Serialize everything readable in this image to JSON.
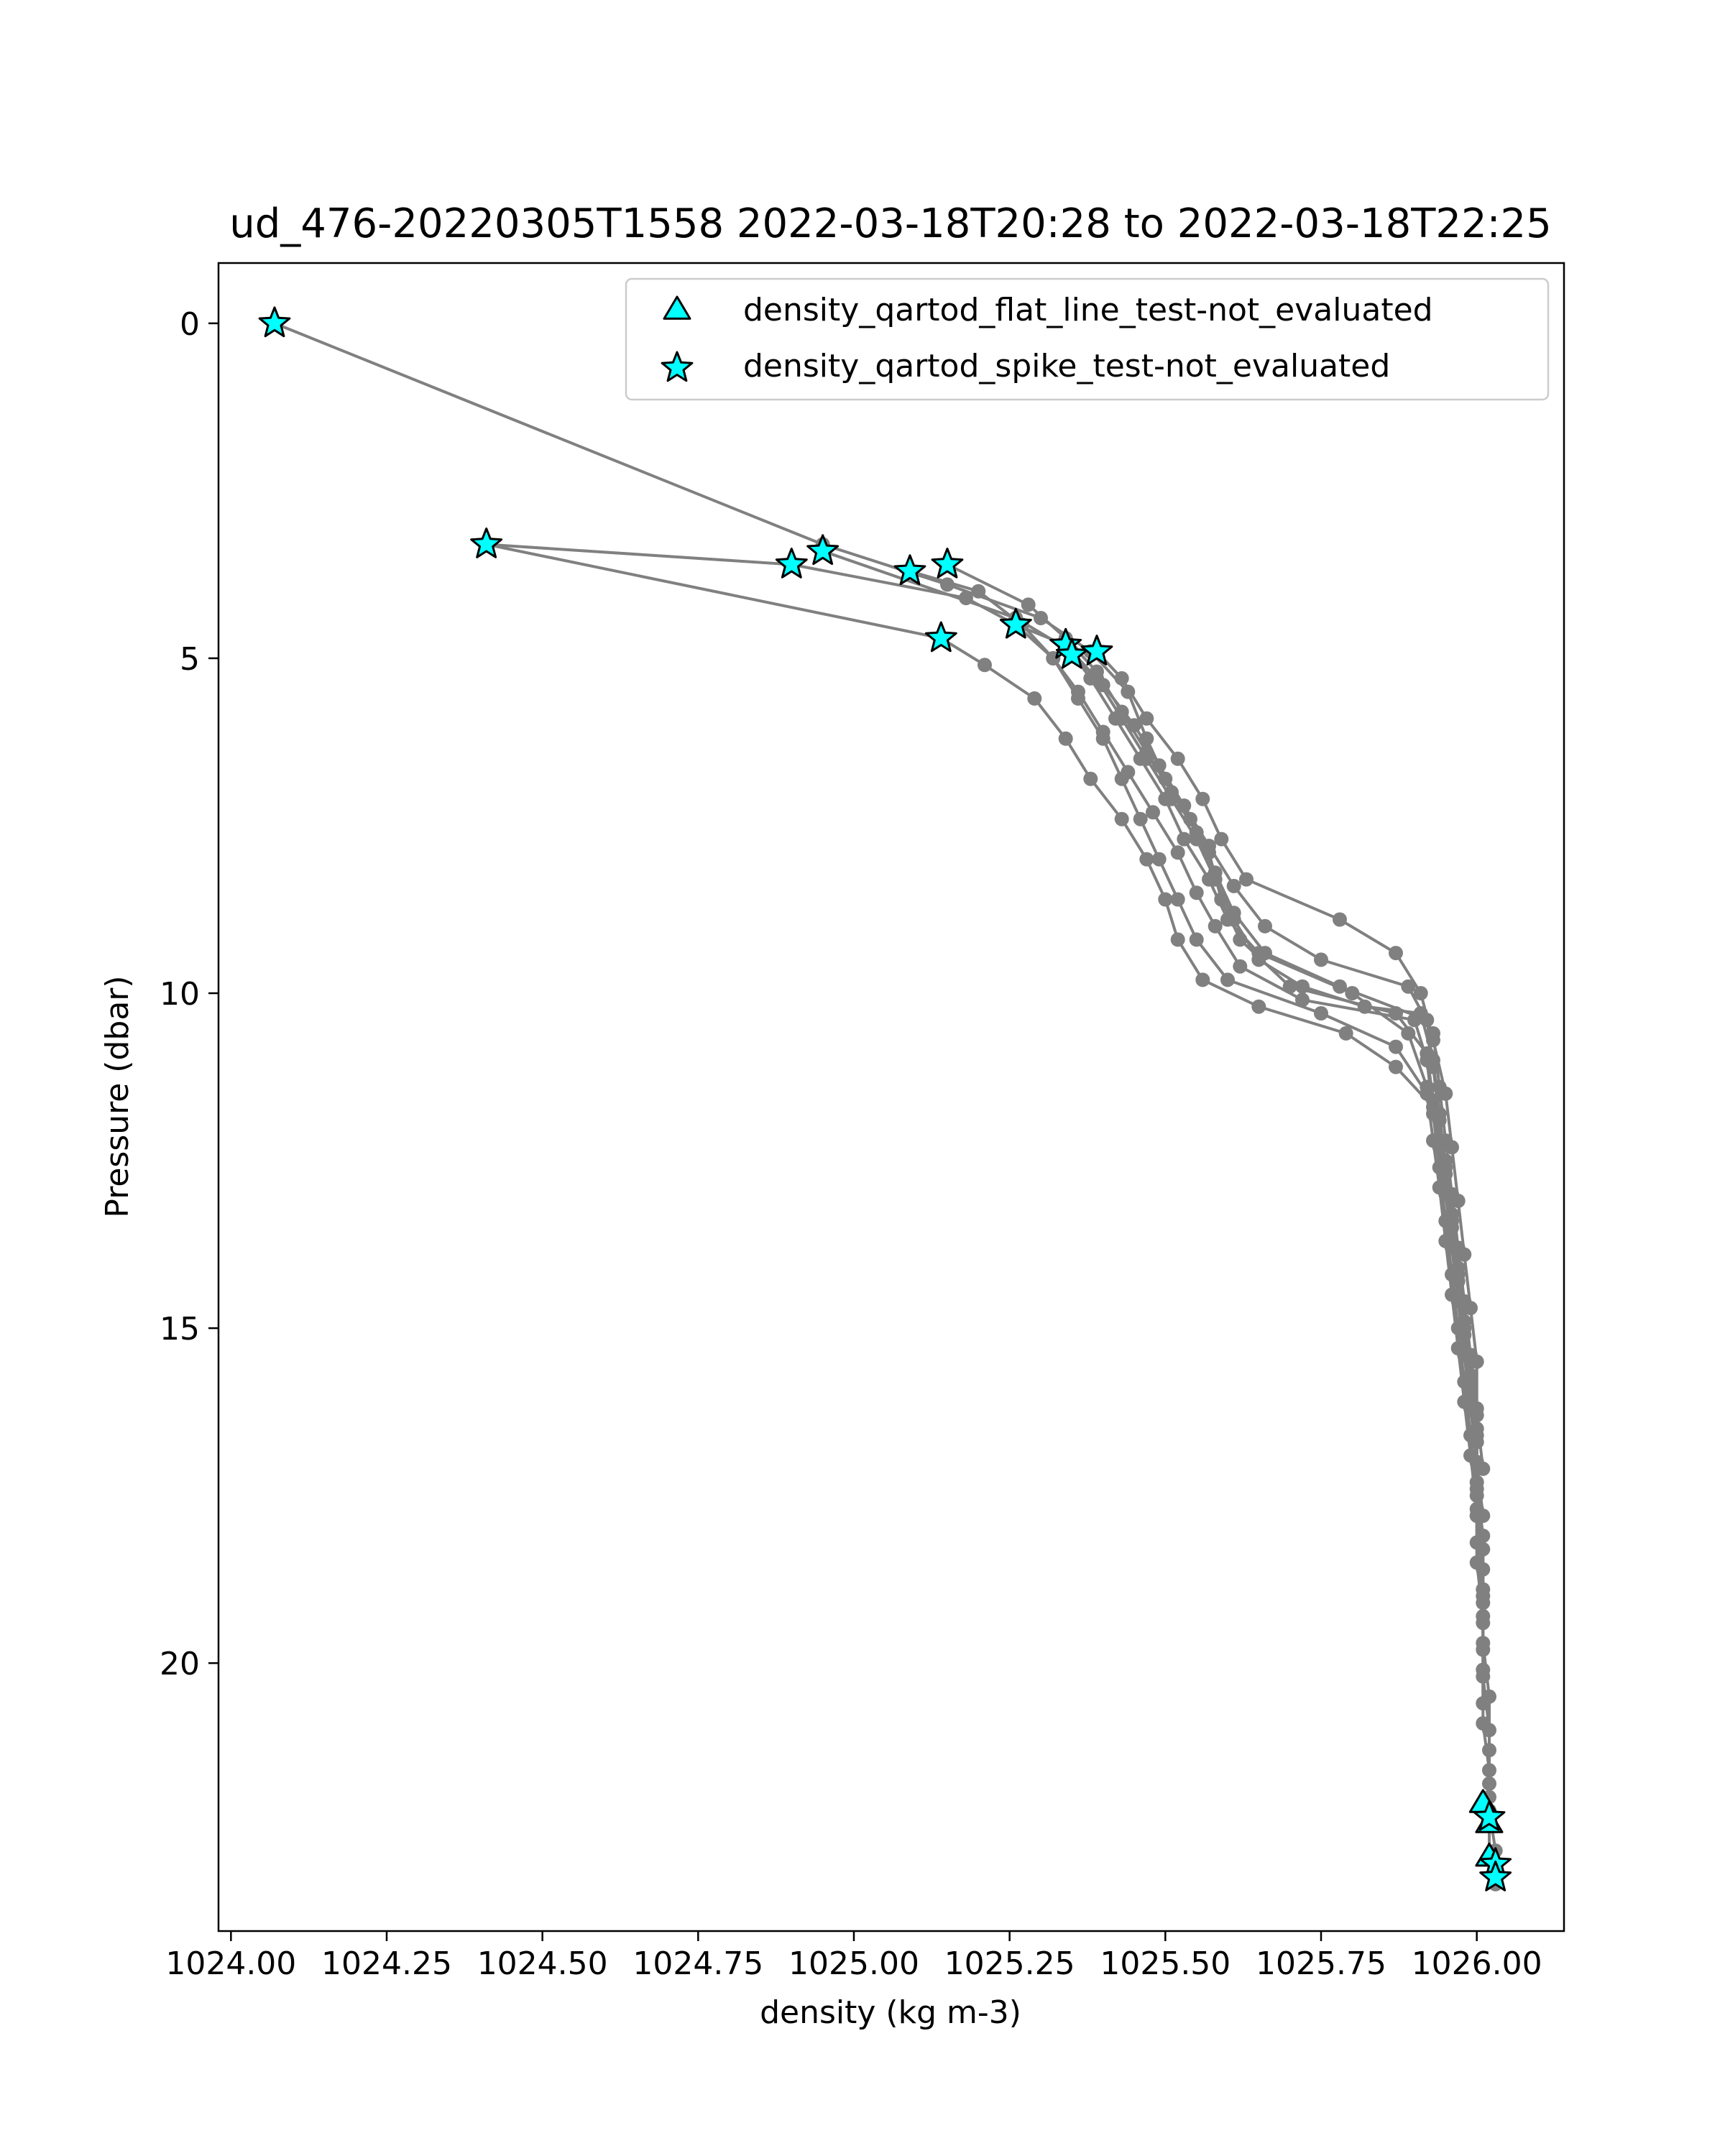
{
  "chart_data": {
    "type": "scatter",
    "title": "ud_476-20220305T1558 2022-03-18T20:28 to 2022-03-18T22:25",
    "xlabel": "density (kg m-3)",
    "ylabel": "Pressure (dbar)",
    "xlim": [
      1023.98,
      1026.14
    ],
    "ylim": [
      24.0,
      -0.9
    ],
    "y_inverted": true,
    "grid": false,
    "legend_position": "upper right",
    "xticks": [
      1024.0,
      1024.25,
      1024.5,
      1024.75,
      1025.0,
      1025.25,
      1025.5,
      1025.75,
      1026.0
    ],
    "xtick_labels": [
      "1024.00",
      "1024.25",
      "1024.50",
      "1024.75",
      "1025.00",
      "1025.25",
      "1025.50",
      "1025.75",
      "1026.00"
    ],
    "yticks": [
      0,
      5,
      10,
      15,
      20
    ],
    "ytick_labels": [
      "0",
      "5",
      "10",
      "15",
      "20"
    ],
    "colors": {
      "profile_line": "#808080",
      "marker_fill": "#00ffff",
      "marker_edge": "#000000",
      "legend_border": "#cccccc"
    },
    "series": [
      {
        "x": [
          1024.07,
          1024.95,
          1025.15,
          1025.3,
          1025.38,
          1025.44,
          1025.47,
          1025.5,
          1025.54,
          1025.57,
          1025.59,
          1025.62,
          1025.7,
          1025.87,
          1025.92,
          1025.93,
          1025.94,
          1025.95,
          1025.96,
          1025.97,
          1025.98,
          1025.99,
          1026.0,
          1026.0,
          1026.01,
          1026.01,
          1026.01,
          1026.02,
          1026.02,
          1026.02,
          1026.03,
          1026.03
        ],
        "y": [
          0.0,
          3.3,
          3.9,
          4.4,
          4.9,
          5.5,
          6.2,
          6.8,
          7.4,
          7.9,
          8.6,
          9.2,
          9.9,
          10.3,
          10.9,
          11.6,
          12.3,
          13.0,
          13.8,
          14.6,
          15.4,
          16.2,
          17.0,
          17.8,
          18.6,
          19.4,
          20.2,
          21.0,
          21.8,
          22.2,
          22.8,
          23.2
        ]
      },
      {
        "x": [
          1024.41,
          1025.14,
          1025.21,
          1025.29,
          1025.34,
          1025.38,
          1025.43,
          1025.47,
          1025.5,
          1025.52,
          1025.56,
          1025.65,
          1025.79,
          1025.87,
          1025.93,
          1025.95,
          1025.96,
          1025.97,
          1025.98,
          1025.99,
          1026.0,
          1026.0,
          1026.01,
          1026.01,
          1026.01,
          1026.02,
          1026.02,
          1026.02,
          1026.02,
          1026.02,
          1026.03
        ],
        "y": [
          3.3,
          4.7,
          5.1,
          5.6,
          6.2,
          6.8,
          7.4,
          8.0,
          8.6,
          9.2,
          9.8,
          10.2,
          10.6,
          11.1,
          11.7,
          12.5,
          13.3,
          14.1,
          14.9,
          15.7,
          16.5,
          17.3,
          18.1,
          18.9,
          19.7,
          20.5,
          21.3,
          22.0,
          22.4,
          22.9,
          23.3
        ]
      },
      {
        "x": [
          1024.41,
          1024.9,
          1025.18,
          1025.26,
          1025.32,
          1025.36,
          1025.4,
          1025.43,
          1025.46,
          1025.49,
          1025.52,
          1025.55,
          1025.6,
          1025.75,
          1025.87,
          1025.92,
          1025.93,
          1025.94,
          1025.95,
          1025.96,
          1025.97,
          1025.98,
          1025.99,
          1026.0,
          1026.0,
          1026.01,
          1026.01,
          1026.01,
          1026.02
        ],
        "y": [
          3.3,
          3.6,
          4.1,
          4.5,
          5.0,
          5.6,
          6.2,
          6.8,
          7.4,
          8.0,
          8.6,
          9.2,
          9.8,
          10.3,
          10.8,
          11.5,
          12.2,
          12.9,
          13.7,
          14.5,
          15.3,
          16.1,
          16.9,
          17.7,
          18.5,
          19.3,
          20.1,
          20.9,
          21.6
        ]
      },
      {
        "x": [
          1025.09,
          1025.2,
          1025.27,
          1025.32,
          1025.36,
          1025.4,
          1025.44,
          1025.48,
          1025.52,
          1025.55,
          1025.58,
          1025.62,
          1025.72,
          1025.9,
          1025.92,
          1025.93,
          1025.94,
          1025.95,
          1025.96,
          1025.97,
          1025.98,
          1025.99,
          1026.0,
          1026.0,
          1026.01,
          1026.01,
          1026.01
        ],
        "y": [
          3.7,
          4.0,
          4.5,
          5.0,
          5.5,
          6.1,
          6.7,
          7.3,
          7.9,
          8.5,
          9.0,
          9.6,
          10.1,
          10.4,
          11.0,
          11.8,
          12.6,
          13.4,
          14.2,
          15.0,
          15.8,
          16.6,
          17.4,
          18.2,
          19.0,
          19.8,
          20.6
        ]
      },
      {
        "x": [
          1025.15,
          1025.28,
          1025.34,
          1025.39,
          1025.43,
          1025.47,
          1025.51,
          1025.55,
          1025.58,
          1025.61,
          1025.66,
          1025.78,
          1025.92,
          1025.93,
          1025.94,
          1025.95,
          1025.96,
          1025.97,
          1025.98,
          1025.99,
          1026.0,
          1026.0,
          1026.01,
          1026.01
        ],
        "y": [
          3.6,
          4.2,
          4.7,
          5.2,
          5.8,
          6.4,
          7.0,
          7.6,
          8.2,
          8.8,
          9.4,
          9.9,
          10.4,
          11.1,
          11.9,
          12.7,
          13.5,
          14.3,
          15.1,
          15.9,
          16.7,
          17.5,
          18.3,
          19.1
        ]
      },
      {
        "x": [
          1024.95,
          1025.26,
          1025.35,
          1025.4,
          1025.45,
          1025.49,
          1025.53,
          1025.57,
          1025.61,
          1025.66,
          1025.75,
          1025.89,
          1025.93,
          1025.94,
          1025.95,
          1025.96,
          1025.97,
          1025.98,
          1025.99,
          1026.0,
          1026.0,
          1026.01
        ],
        "y": [
          3.4,
          4.4,
          4.9,
          5.4,
          6.0,
          6.6,
          7.2,
          7.8,
          8.4,
          9.0,
          9.5,
          9.9,
          10.6,
          11.4,
          12.2,
          13.0,
          13.8,
          14.6,
          15.4,
          16.2,
          17.0,
          17.8
        ]
      },
      {
        "x": [
          1025.35,
          1025.39,
          1025.43,
          1025.47,
          1025.51,
          1025.55,
          1025.58,
          1025.61,
          1025.65,
          1025.72,
          1025.82,
          1025.91,
          1025.93,
          1025.94,
          1025.95,
          1025.96,
          1025.97,
          1025.98,
          1025.99,
          1026.0
        ],
        "y": [
          4.95,
          5.3,
          5.9,
          6.5,
          7.1,
          7.7,
          8.3,
          8.9,
          9.5,
          9.9,
          10.2,
          10.3,
          11.0,
          11.8,
          12.6,
          13.4,
          14.2,
          15.0,
          15.8,
          16.6
        ]
      },
      {
        "x": [
          1025.39,
          1025.43,
          1025.47,
          1025.52,
          1025.56,
          1025.59,
          1025.63,
          1025.78,
          1025.87,
          1025.91,
          1025.93,
          1025.95,
          1025.96,
          1025.97,
          1025.98,
          1025.99,
          1026.0,
          1026.0,
          1026.01
        ],
        "y": [
          4.9,
          5.3,
          5.9,
          6.5,
          7.1,
          7.7,
          8.3,
          8.9,
          9.4,
          10.0,
          10.7,
          11.5,
          12.3,
          13.1,
          13.9,
          14.7,
          15.5,
          16.3,
          17.1
        ]
      },
      {
        "x": [
          1025.26,
          1025.34,
          1025.38,
          1025.42,
          1025.46,
          1025.5,
          1025.53,
          1025.57,
          1025.6,
          1025.65,
          1025.8,
          1025.89,
          1025.92,
          1025.94,
          1025.95,
          1025.96,
          1025.97,
          1025.98,
          1025.99,
          1026.0,
          1026.0
        ],
        "y": [
          4.5,
          4.8,
          5.3,
          5.9,
          6.5,
          7.1,
          7.7,
          8.3,
          8.9,
          9.4,
          10.0,
          10.6,
          11.4,
          12.2,
          13.0,
          13.8,
          14.6,
          15.4,
          16.2,
          17.0,
          17.8
        ]
      }
    ],
    "flags": [
      {
        "name": "density_qartod_flat_line_test-not_evaluated",
        "marker": "triangle",
        "x": [
          1026.01,
          1026.02,
          1026.02
        ],
        "y": [
          22.1,
          22.4,
          22.9
        ]
      },
      {
        "name": "density_qartod_spike_test-not_evaluated",
        "marker": "star",
        "x": [
          1024.07,
          1024.41,
          1024.9,
          1024.95,
          1025.09,
          1025.15,
          1025.14,
          1025.26,
          1025.34,
          1025.35,
          1025.39,
          1026.02,
          1026.03,
          1026.03
        ],
        "y": [
          0.0,
          3.3,
          3.6,
          3.4,
          3.7,
          3.6,
          4.7,
          4.5,
          4.8,
          4.95,
          4.9,
          22.3,
          23.0,
          23.2
        ]
      }
    ]
  }
}
